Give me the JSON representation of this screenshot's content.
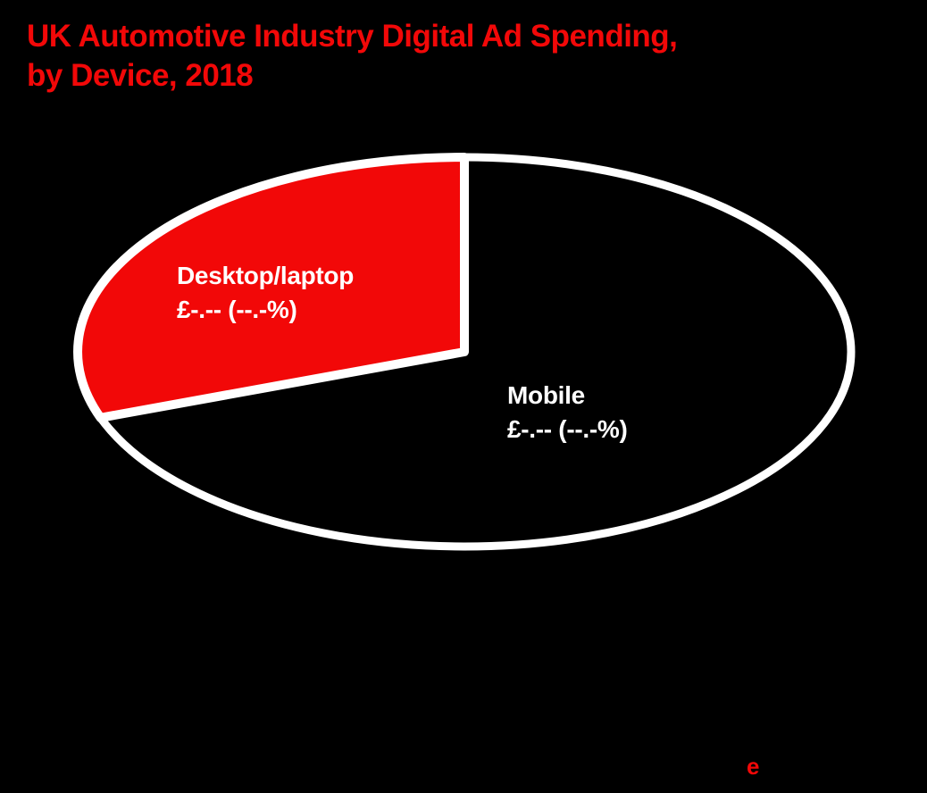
{
  "page_background": "#000000",
  "header": {
    "title_line1": "UK Automotive Industry Digital Ad Spending,",
    "title_line2": "by Device, 2018",
    "title_color": "#f20808"
  },
  "chart_data": {
    "type": "pie",
    "title": "UK Automotive Industry Digital Ad Spending, by Device, 2018",
    "start_angle_deg": 90,
    "direction": "counterclockwise",
    "outline_color": "#ffffff",
    "background_color": "#000000",
    "legend_position": "inside-slices",
    "slices": [
      {
        "label": "Desktop/laptop",
        "value_label": "£-.-- (--.-%)",
        "color": "#f20808",
        "label_color": "#ffffff",
        "share_pct_estimated": 30.5
      },
      {
        "label": "Mobile",
        "value_label": "£-.-- (--.-%)",
        "color": "#000000",
        "label_color": "#ffffff",
        "share_pct_estimated": 69.5
      }
    ]
  },
  "footer": {
    "logo_text": "e",
    "logo_color": "#f20808"
  }
}
